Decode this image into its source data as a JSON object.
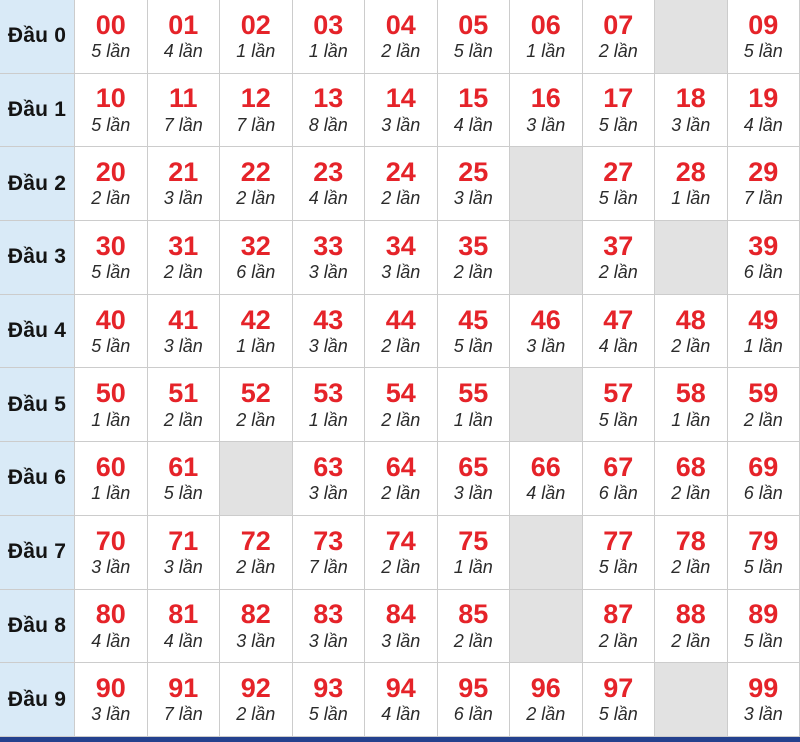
{
  "table": {
    "row_header_prefix": "Đầu",
    "count_suffix": "lần",
    "rows": [
      {
        "label": "Đầu 0",
        "cells": [
          {
            "n": "00",
            "c": "5 lần"
          },
          {
            "n": "01",
            "c": "4 lần"
          },
          {
            "n": "02",
            "c": "1 lần"
          },
          {
            "n": "03",
            "c": "1 lần"
          },
          {
            "n": "04",
            "c": "2 lần"
          },
          {
            "n": "05",
            "c": "5 lần"
          },
          {
            "n": "06",
            "c": "1 lần"
          },
          {
            "n": "07",
            "c": "2 lần"
          },
          null,
          {
            "n": "09",
            "c": "5 lần"
          }
        ]
      },
      {
        "label": "Đầu 1",
        "cells": [
          {
            "n": "10",
            "c": "5 lần"
          },
          {
            "n": "11",
            "c": "7 lần"
          },
          {
            "n": "12",
            "c": "7 lần"
          },
          {
            "n": "13",
            "c": "8 lần"
          },
          {
            "n": "14",
            "c": "3 lần"
          },
          {
            "n": "15",
            "c": "4 lần"
          },
          {
            "n": "16",
            "c": "3 lần"
          },
          {
            "n": "17",
            "c": "5 lần"
          },
          {
            "n": "18",
            "c": "3 lần"
          },
          {
            "n": "19",
            "c": "4 lần"
          }
        ]
      },
      {
        "label": "Đầu 2",
        "cells": [
          {
            "n": "20",
            "c": "2 lần"
          },
          {
            "n": "21",
            "c": "3 lần"
          },
          {
            "n": "22",
            "c": "2 lần"
          },
          {
            "n": "23",
            "c": "4 lần"
          },
          {
            "n": "24",
            "c": "2 lần"
          },
          {
            "n": "25",
            "c": "3 lần"
          },
          null,
          {
            "n": "27",
            "c": "5 lần"
          },
          {
            "n": "28",
            "c": "1 lần"
          },
          {
            "n": "29",
            "c": "7 lần"
          }
        ]
      },
      {
        "label": "Đầu 3",
        "cells": [
          {
            "n": "30",
            "c": "5 lần"
          },
          {
            "n": "31",
            "c": "2 lần"
          },
          {
            "n": "32",
            "c": "6 lần"
          },
          {
            "n": "33",
            "c": "3 lần"
          },
          {
            "n": "34",
            "c": "3 lần"
          },
          {
            "n": "35",
            "c": "2 lần"
          },
          null,
          {
            "n": "37",
            "c": "2 lần"
          },
          null,
          {
            "n": "39",
            "c": "6 lần"
          }
        ]
      },
      {
        "label": "Đầu 4",
        "cells": [
          {
            "n": "40",
            "c": "5 lần"
          },
          {
            "n": "41",
            "c": "3 lần"
          },
          {
            "n": "42",
            "c": "1 lần"
          },
          {
            "n": "43",
            "c": "3 lần"
          },
          {
            "n": "44",
            "c": "2 lần"
          },
          {
            "n": "45",
            "c": "5 lần"
          },
          {
            "n": "46",
            "c": "3 lần"
          },
          {
            "n": "47",
            "c": "4 lần"
          },
          {
            "n": "48",
            "c": "2 lần"
          },
          {
            "n": "49",
            "c": "1 lần"
          }
        ]
      },
      {
        "label": "Đầu 5",
        "cells": [
          {
            "n": "50",
            "c": "1 lần"
          },
          {
            "n": "51",
            "c": "2 lần"
          },
          {
            "n": "52",
            "c": "2 lần"
          },
          {
            "n": "53",
            "c": "1 lần"
          },
          {
            "n": "54",
            "c": "2 lần"
          },
          {
            "n": "55",
            "c": "1 lần"
          },
          null,
          {
            "n": "57",
            "c": "5 lần"
          },
          {
            "n": "58",
            "c": "1 lần"
          },
          {
            "n": "59",
            "c": "2 lần"
          }
        ]
      },
      {
        "label": "Đầu 6",
        "cells": [
          {
            "n": "60",
            "c": "1 lần"
          },
          {
            "n": "61",
            "c": "5 lần"
          },
          null,
          {
            "n": "63",
            "c": "3 lần"
          },
          {
            "n": "64",
            "c": "2 lần"
          },
          {
            "n": "65",
            "c": "3 lần"
          },
          {
            "n": "66",
            "c": "4 lần"
          },
          {
            "n": "67",
            "c": "6 lần"
          },
          {
            "n": "68",
            "c": "2 lần"
          },
          {
            "n": "69",
            "c": "6 lần"
          }
        ]
      },
      {
        "label": "Đầu 7",
        "cells": [
          {
            "n": "70",
            "c": "3 lần"
          },
          {
            "n": "71",
            "c": "3 lần"
          },
          {
            "n": "72",
            "c": "2 lần"
          },
          {
            "n": "73",
            "c": "7 lần"
          },
          {
            "n": "74",
            "c": "2 lần"
          },
          {
            "n": "75",
            "c": "1 lần"
          },
          null,
          {
            "n": "77",
            "c": "5 lần"
          },
          {
            "n": "78",
            "c": "2 lần"
          },
          {
            "n": "79",
            "c": "5 lần"
          }
        ]
      },
      {
        "label": "Đầu 8",
        "cells": [
          {
            "n": "80",
            "c": "4 lần"
          },
          {
            "n": "81",
            "c": "4 lần"
          },
          {
            "n": "82",
            "c": "3 lần"
          },
          {
            "n": "83",
            "c": "3 lần"
          },
          {
            "n": "84",
            "c": "3 lần"
          },
          {
            "n": "85",
            "c": "2 lần"
          },
          null,
          {
            "n": "87",
            "c": "2 lần"
          },
          {
            "n": "88",
            "c": "2 lần"
          },
          {
            "n": "89",
            "c": "5 lần"
          }
        ]
      },
      {
        "label": "Đầu 9",
        "cells": [
          {
            "n": "90",
            "c": "3 lần"
          },
          {
            "n": "91",
            "c": "7 lần"
          },
          {
            "n": "92",
            "c": "2 lần"
          },
          {
            "n": "93",
            "c": "5 lần"
          },
          {
            "n": "94",
            "c": "4 lần"
          },
          {
            "n": "95",
            "c": "6 lần"
          },
          {
            "n": "96",
            "c": "2 lần"
          },
          {
            "n": "97",
            "c": "5 lần"
          },
          null,
          {
            "n": "99",
            "c": "3 lần"
          }
        ]
      }
    ]
  },
  "colors": {
    "number_red": "#e52329",
    "count_text": "#2b2b2b",
    "row_header_bg": "#d9eaf7",
    "empty_cell_bg": "#e2e2e2",
    "cell_border": "#cccccc",
    "bottom_bar": "#24418e"
  }
}
